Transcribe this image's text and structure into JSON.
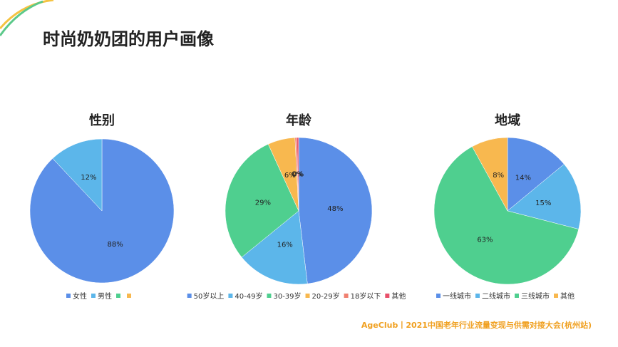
{
  "header": {
    "title": "时尚奶奶团的用户画像"
  },
  "footer": "AgeClub丨2021中国老年行业流量变现与供需对接大会(杭州站)",
  "chart_data": [
    {
      "type": "pie",
      "title": "性别",
      "categories": [
        "女性",
        "男性",
        null,
        null
      ],
      "values": [
        88,
        12,
        0,
        0
      ],
      "value_labels": [
        "88%",
        "12%",
        null,
        null
      ],
      "colors": [
        "#5b8fe8",
        "#5cb6ea",
        "#4fcf8f",
        "#f8b84f"
      ]
    },
    {
      "type": "pie",
      "title": "年龄",
      "categories": [
        "50岁以上",
        "40-49岁",
        "30-39岁",
        "20-29岁",
        "18岁以下",
        "其他"
      ],
      "values": [
        48,
        16,
        29,
        6,
        0.4,
        0.4
      ],
      "value_labels": [
        "48%",
        "16%",
        "29%",
        "6%",
        "0%",
        "0%"
      ],
      "colors": [
        "#5b8fe8",
        "#5cb6ea",
        "#4fcf8f",
        "#f8b84f",
        "#f08070",
        "#e8506a"
      ]
    },
    {
      "type": "pie",
      "title": "地域",
      "categories": [
        "一线城市",
        "二线城市",
        "三线城市",
        "其他"
      ],
      "values": [
        14,
        15,
        63,
        8
      ],
      "value_labels": [
        "14%",
        "15%",
        "63%",
        "8%"
      ],
      "colors": [
        "#5b8fe8",
        "#5cb6ea",
        "#4fcf8f",
        "#f8b84f"
      ]
    }
  ]
}
